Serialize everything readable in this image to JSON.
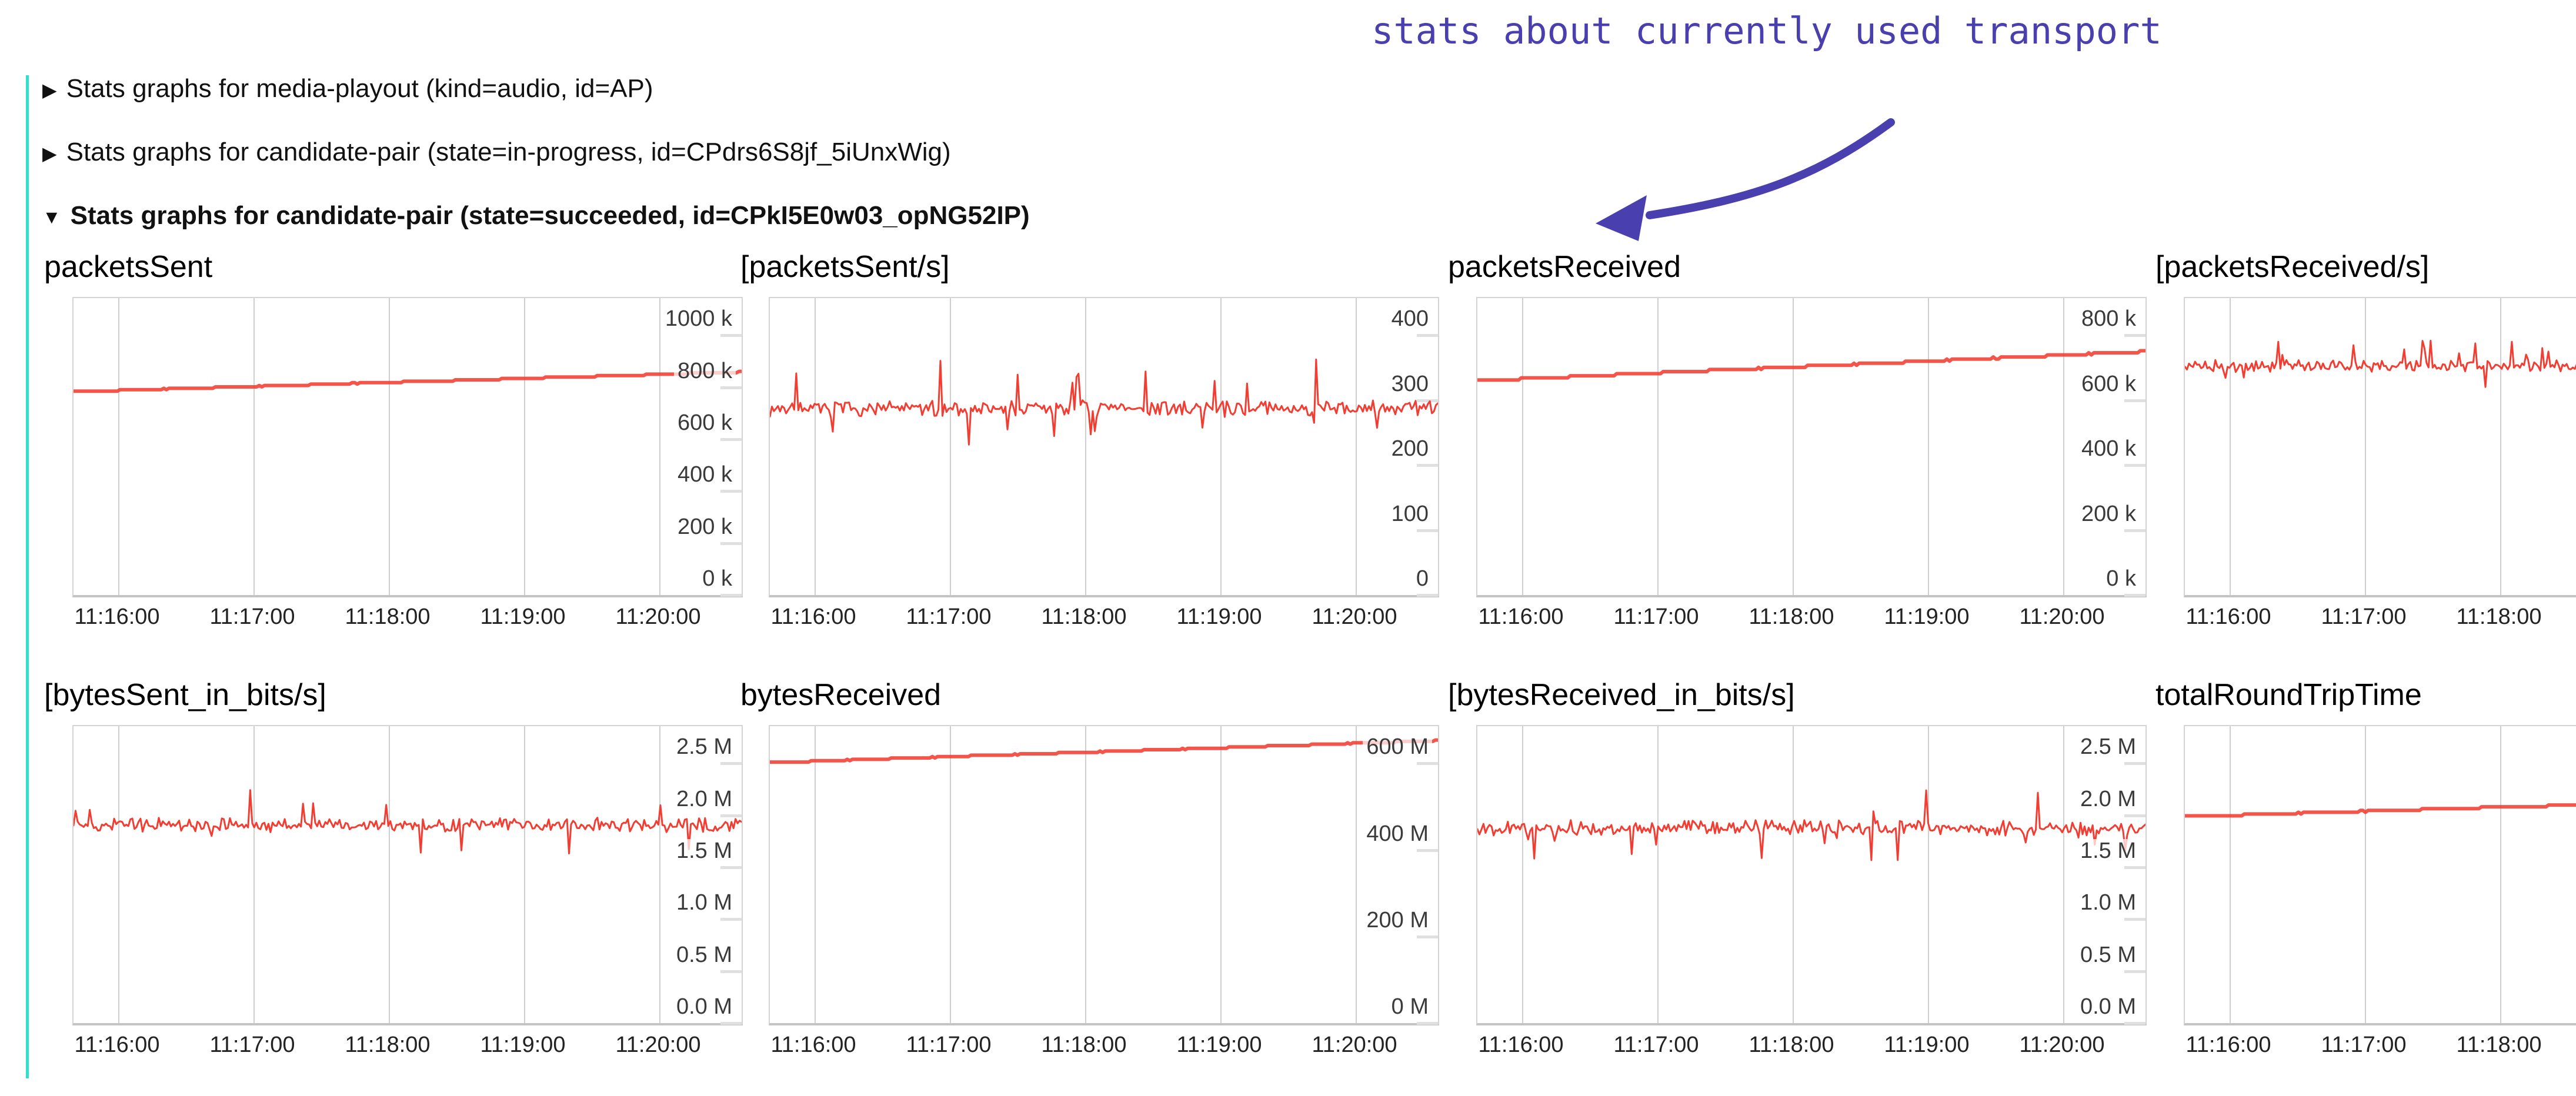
{
  "page": {
    "background": "#ffffff"
  },
  "accent_bar": {
    "color": "#30e0cf"
  },
  "annotation": {
    "text": "stats about currently used transport",
    "color": "#4a3fae"
  },
  "sections": [
    {
      "arrow": "▶",
      "label": "Stats graphs for media-playout (kind=audio, id=AP)",
      "expanded": false
    },
    {
      "arrow": "▶",
      "label": "Stats graphs for candidate-pair (state=in-progress, id=CPdrs6S8jf_5iUnxWig)",
      "expanded": false
    },
    {
      "arrow": "▼",
      "label": "Stats graphs for candidate-pair (state=succeeded, id=CPkI5E0w03_opNG52IP)",
      "expanded": true
    }
  ],
  "colors": {
    "line": "#f23d32",
    "grid": "#cfcfcf",
    "axis_text": "#3a3a3a",
    "tick_bar": "#e0e0e0"
  },
  "chart_data": [
    {
      "title": "packetsSent",
      "type": "line",
      "row": 0,
      "col": 0,
      "x_ticks": [
        "11:16:00",
        "11:17:00",
        "11:18:00",
        "11:19:00",
        "11:20:00"
      ],
      "y_ticks": [
        "1000 k",
        "800 k",
        "600 k",
        "400 k",
        "200 k",
        "0 k"
      ],
      "y_max": 1000000,
      "series": {
        "shape": "step",
        "from": 722000,
        "to": 798000,
        "quant_steps": 14,
        "seed": 1
      },
      "summary": "cumulative count rising steadily from ~722k to ~798k"
    },
    {
      "title": "[packetsSent/s]",
      "type": "line",
      "row": 0,
      "col": 1,
      "x_ticks": [
        "11:16:00",
        "11:17:00",
        "11:18:00",
        "11:19:00",
        "11:20:00"
      ],
      "y_ticks": [
        "400",
        "300",
        "200",
        "100",
        "0"
      ],
      "y_max": 400,
      "series": {
        "shape": "noisy",
        "mean": 262,
        "jitter": 9,
        "spike": 45,
        "spike_prob": 0.07,
        "seed": 7
      },
      "summary": "noisy rate around ~260/s with spikes between ~205 and ~330"
    },
    {
      "title": "packetsReceived",
      "type": "line",
      "row": 0,
      "col": 2,
      "x_ticks": [
        "11:16:00",
        "11:17:00",
        "11:18:00",
        "11:19:00",
        "11:20:00"
      ],
      "y_ticks": [
        "800 k",
        "600 k",
        "400 k",
        "200 k",
        "0 k"
      ],
      "y_max": 800000,
      "series": {
        "shape": "step",
        "from": 612000,
        "to": 702000,
        "quant_steps": 14,
        "seed": 3
      },
      "summary": "cumulative count rising steadily from ~612k to ~702k"
    },
    {
      "title": "[packetsReceived/s]",
      "type": "line",
      "row": 0,
      "col": 3,
      "x_ticks": [
        "11:16:00",
        "11:17:00",
        "11:18:00"
      ],
      "y_ticks": [],
      "y_axis_clipped": true,
      "series": {
        "shape": "noisy_frac",
        "mean_frac": 0.23,
        "jitter_frac": 0.016,
        "spike_frac": 0.055,
        "spike_prob": 0.08,
        "seed": 11
      },
      "summary": "noisy rate band near top of plot; chart clipped at right edge of screenshot"
    },
    {
      "title": "[bytesSent_in_bits/s]",
      "type": "line",
      "row": 1,
      "col": 0,
      "x_ticks": [
        "11:16:00",
        "11:17:00",
        "11:18:00",
        "11:19:00",
        "11:20:00"
      ],
      "y_ticks": [
        "2.5 M",
        "2.0 M",
        "1.5 M",
        "1.0 M",
        "0.5 M",
        "0.0 M"
      ],
      "y_max": 2500000,
      "series": {
        "shape": "noisy",
        "mean": 1750000,
        "jitter": 50000,
        "spike": 240000,
        "spike_prob": 0.06,
        "seed": 13
      },
      "summary": "noisy bitrate around ~1.7 Mbit/s, spikes up to ~2.05 M and down to ~1.45 M"
    },
    {
      "title": "bytesReceived",
      "type": "line",
      "row": 1,
      "col": 1,
      "x_ticks": [
        "11:16:00",
        "11:17:00",
        "11:18:00",
        "11:19:00",
        "11:20:00"
      ],
      "y_ticks": [
        "600 M",
        "400 M",
        "200 M",
        "0 M"
      ],
      "y_max": 600000000,
      "series": {
        "shape": "step",
        "from": 565000000,
        "to": 616000000,
        "quant_steps": 16,
        "seed": 5
      },
      "summary": "cumulative bytes rising steadily from ~565 M to ~616 M, passing the 600 M tick"
    },
    {
      "title": "[bytesReceived_in_bits/s]",
      "type": "line",
      "row": 1,
      "col": 2,
      "x_ticks": [
        "11:16:00",
        "11:17:00",
        "11:18:00",
        "11:19:00",
        "11:20:00"
      ],
      "y_ticks": [
        "2.5 M",
        "2.0 M",
        "1.5 M",
        "1.0 M",
        "0.5 M",
        "0.0 M"
      ],
      "y_max": 2500000,
      "series": {
        "shape": "noisy",
        "mean": 1720000,
        "jitter": 55000,
        "spike": 260000,
        "spike_prob": 0.07,
        "seed": 17
      },
      "summary": "noisy bitrate around ~1.7 Mbit/s with spikes up to ~2.0 M"
    },
    {
      "title": "totalRoundTripTime",
      "type": "line",
      "row": 1,
      "col": 3,
      "x_ticks": [
        "11:16:00",
        "11:17:00",
        "11:18:00"
      ],
      "y_ticks": [],
      "y_axis_clipped": true,
      "series": {
        "shape": "step_frac",
        "from_frac": 0.302,
        "to_frac": 0.235,
        "quant_steps": 11,
        "seed": 19
      },
      "summary": "slowly rising stepped cumulative value; chart clipped at right edge of screenshot"
    }
  ]
}
